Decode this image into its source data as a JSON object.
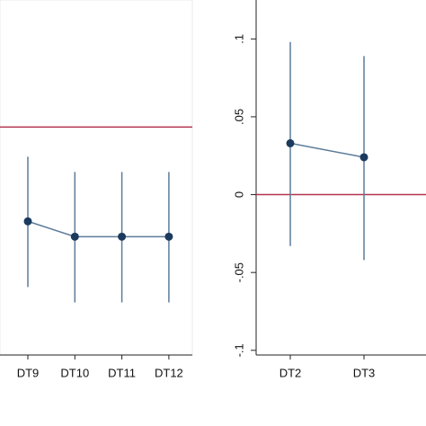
{
  "chart_data": [
    {
      "type": "line",
      "categories": [
        "DT9",
        "DT10",
        "DT11",
        "DT12"
      ],
      "values": [
        -0.043,
        -0.05,
        -0.05,
        -0.05
      ],
      "ci_low": [
        -0.073,
        -0.08,
        -0.08,
        -0.08
      ],
      "ci_high": [
        -0.0135,
        -0.0205,
        -0.0205,
        -0.0205
      ],
      "ylim": [
        -0.104,
        0.058
      ],
      "reference_line": 0,
      "color": "#1b3a5e",
      "line_color": "#5c7c9a",
      "reference_color": "#b3344f"
    },
    {
      "type": "line",
      "categories": [
        "DT2",
        "DT3"
      ],
      "values": [
        0.033,
        0.024
      ],
      "ci_low": [
        -0.033,
        -0.042
      ],
      "ci_high": [
        0.098,
        0.089
      ],
      "ylim": [
        -0.103,
        0.125
      ],
      "yticks": [
        {
          "value": 0.1,
          "label": ".1"
        },
        {
          "value": 0.05,
          "label": ".05"
        },
        0,
        {
          "value": -0.05,
          "label": "-.05"
        },
        {
          "value": -0.1,
          "label": "-.1"
        }
      ],
      "reference_line": 0,
      "color": "#1b3a5e",
      "line_color": "#5c7c9a",
      "reference_color": "#b3344f"
    }
  ]
}
